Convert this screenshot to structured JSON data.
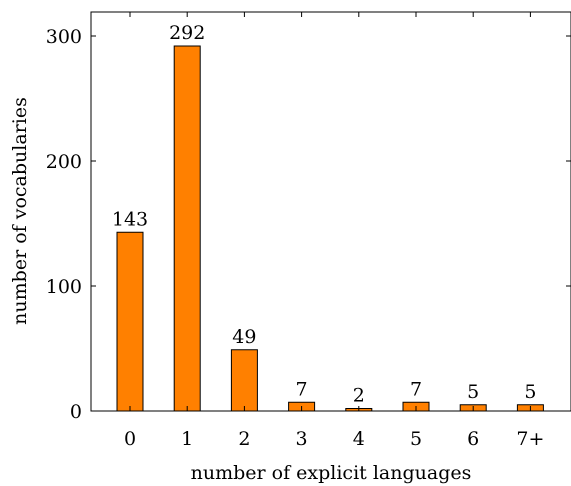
{
  "chart_data": {
    "type": "bar",
    "categories": [
      "0",
      "1",
      "2",
      "3",
      "4",
      "5",
      "6",
      "7+"
    ],
    "values": [
      143,
      292,
      49,
      7,
      2,
      7,
      5,
      5
    ],
    "data_labels": [
      "143",
      "292",
      "49",
      "7",
      "2",
      "7",
      "5",
      "5"
    ],
    "title": "",
    "xlabel": "number of explicit languages",
    "ylabel": "number of vocabularies",
    "ylim": [
      0,
      320
    ],
    "yticks": [
      0,
      100,
      200,
      300
    ],
    "grid": false,
    "bar_color": "#ff8000",
    "bar_edge_color": "#000000"
  }
}
